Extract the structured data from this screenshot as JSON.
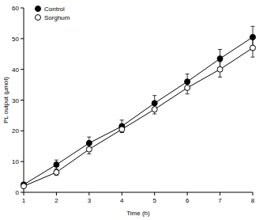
{
  "chart_data": {
    "type": "line",
    "x_label": "Time (h)",
    "y_label": "PL output (µmol)",
    "x": [
      1,
      2,
      3,
      4,
      5,
      6,
      7,
      8
    ],
    "series": [
      {
        "name": "Control",
        "color": "#000000",
        "marker": "filled_circle",
        "values": [
          2.5,
          9,
          16,
          21.5,
          29,
          36,
          43.5,
          50.5
        ],
        "errors": [
          0.5,
          1.5,
          2,
          2,
          2.5,
          2.5,
          3,
          3.5
        ]
      },
      {
        "name": "Sorghum",
        "color": "#000000",
        "marker": "open_circle",
        "values": [
          2,
          6.5,
          14,
          20.5,
          27,
          34,
          40,
          47
        ],
        "errors": [
          0.5,
          1,
          1.5,
          1,
          1.5,
          2,
          2.5,
          3
        ]
      }
    ],
    "xlim": [
      1,
      8
    ],
    "xticks": [
      1,
      2,
      3,
      4,
      5,
      6,
      7,
      8
    ],
    "ylim": [
      0,
      60
    ],
    "yticks": [
      0,
      10,
      20,
      30,
      40,
      50,
      60
    ],
    "grid": false,
    "legend": "top-left"
  }
}
